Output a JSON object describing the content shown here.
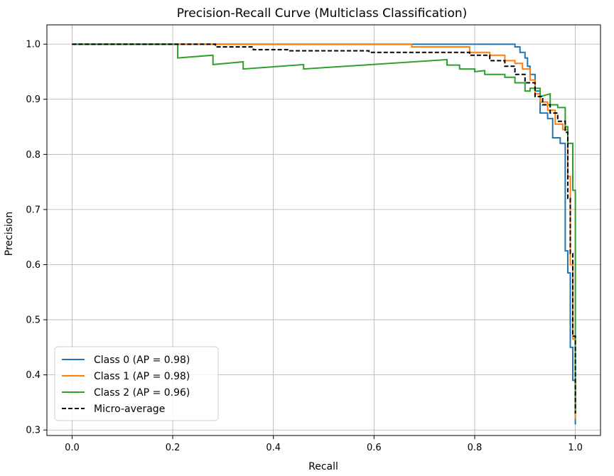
{
  "chart_data": {
    "type": "line",
    "title": "Precision-Recall Curve (Multiclass Classification)",
    "xlabel": "Recall",
    "ylabel": "Precision",
    "xlim": [
      -0.05,
      1.05
    ],
    "ylim": [
      0.29,
      1.035
    ],
    "xticks": [
      0.0,
      0.2,
      0.4,
      0.6,
      0.8,
      1.0
    ],
    "xtick_labels": [
      "0.0",
      "0.2",
      "0.4",
      "0.6",
      "0.8",
      "1.0"
    ],
    "yticks": [
      0.3,
      0.4,
      0.5,
      0.6,
      0.7,
      0.8,
      0.9,
      1.0
    ],
    "ytick_labels": [
      "0.3",
      "0.4",
      "0.5",
      "0.6",
      "0.7",
      "0.8",
      "0.9",
      "1.0"
    ],
    "grid": true,
    "legend_position": "lower-left",
    "series": [
      {
        "name": "Class 0 (AP = 0.98)",
        "color": "#1f77b4",
        "style": "solid",
        "points": [
          [
            0.0,
            1.0
          ],
          [
            0.88,
            1.0
          ],
          [
            0.88,
            0.995
          ],
          [
            0.89,
            0.995
          ],
          [
            0.89,
            0.985
          ],
          [
            0.9,
            0.985
          ],
          [
            0.9,
            0.975
          ],
          [
            0.905,
            0.975
          ],
          [
            0.905,
            0.96
          ],
          [
            0.91,
            0.96
          ],
          [
            0.91,
            0.945
          ],
          [
            0.92,
            0.945
          ],
          [
            0.92,
            0.915
          ],
          [
            0.93,
            0.915
          ],
          [
            0.93,
            0.875
          ],
          [
            0.945,
            0.875
          ],
          [
            0.945,
            0.865
          ],
          [
            0.955,
            0.865
          ],
          [
            0.955,
            0.83
          ],
          [
            0.97,
            0.83
          ],
          [
            0.97,
            0.82
          ],
          [
            0.98,
            0.82
          ],
          [
            0.98,
            0.625
          ],
          [
            0.985,
            0.625
          ],
          [
            0.985,
            0.585
          ],
          [
            0.99,
            0.585
          ],
          [
            0.99,
            0.45
          ],
          [
            0.995,
            0.45
          ],
          [
            0.995,
            0.39
          ],
          [
            1.0,
            0.39
          ],
          [
            1.0,
            0.31
          ]
        ]
      },
      {
        "name": "Class 1 (AP = 0.98)",
        "color": "#ff7f0e",
        "style": "solid",
        "points": [
          [
            0.0,
            1.0
          ],
          [
            0.675,
            1.0
          ],
          [
            0.675,
            0.995
          ],
          [
            0.79,
            0.995
          ],
          [
            0.79,
            0.985
          ],
          [
            0.83,
            0.985
          ],
          [
            0.83,
            0.98
          ],
          [
            0.86,
            0.98
          ],
          [
            0.86,
            0.97
          ],
          [
            0.88,
            0.97
          ],
          [
            0.88,
            0.965
          ],
          [
            0.895,
            0.965
          ],
          [
            0.895,
            0.955
          ],
          [
            0.91,
            0.955
          ],
          [
            0.91,
            0.935
          ],
          [
            0.92,
            0.935
          ],
          [
            0.92,
            0.91
          ],
          [
            0.93,
            0.91
          ],
          [
            0.93,
            0.895
          ],
          [
            0.945,
            0.895
          ],
          [
            0.945,
            0.88
          ],
          [
            0.96,
            0.88
          ],
          [
            0.96,
            0.855
          ],
          [
            0.975,
            0.855
          ],
          [
            0.975,
            0.845
          ],
          [
            0.985,
            0.845
          ],
          [
            0.985,
            0.76
          ],
          [
            0.99,
            0.76
          ],
          [
            0.99,
            0.6
          ],
          [
            0.995,
            0.6
          ],
          [
            0.995,
            0.465
          ],
          [
            1.0,
            0.465
          ],
          [
            1.0,
            0.32
          ]
        ]
      },
      {
        "name": "Class 2 (AP = 0.96)",
        "color": "#2ca02c",
        "style": "solid",
        "points": [
          [
            0.0,
            1.0
          ],
          [
            0.21,
            1.0
          ],
          [
            0.21,
            0.975
          ],
          [
            0.28,
            0.98
          ],
          [
            0.28,
            0.963
          ],
          [
            0.34,
            0.968
          ],
          [
            0.34,
            0.955
          ],
          [
            0.46,
            0.963
          ],
          [
            0.46,
            0.955
          ],
          [
            0.745,
            0.972
          ],
          [
            0.745,
            0.962
          ],
          [
            0.77,
            0.962
          ],
          [
            0.77,
            0.955
          ],
          [
            0.8,
            0.955
          ],
          [
            0.8,
            0.95
          ],
          [
            0.82,
            0.952
          ],
          [
            0.82,
            0.945
          ],
          [
            0.86,
            0.945
          ],
          [
            0.86,
            0.94
          ],
          [
            0.88,
            0.94
          ],
          [
            0.88,
            0.93
          ],
          [
            0.9,
            0.93
          ],
          [
            0.9,
            0.915
          ],
          [
            0.91,
            0.915
          ],
          [
            0.91,
            0.92
          ],
          [
            0.93,
            0.92
          ],
          [
            0.93,
            0.905
          ],
          [
            0.95,
            0.91
          ],
          [
            0.95,
            0.89
          ],
          [
            0.965,
            0.89
          ],
          [
            0.965,
            0.885
          ],
          [
            0.98,
            0.885
          ],
          [
            0.98,
            0.85
          ],
          [
            0.985,
            0.85
          ],
          [
            0.985,
            0.82
          ],
          [
            0.995,
            0.82
          ],
          [
            0.995,
            0.735
          ],
          [
            1.0,
            0.735
          ],
          [
            1.0,
            0.33
          ]
        ]
      },
      {
        "name": "Micro-average",
        "color": "#000000",
        "style": "dashed",
        "points": [
          [
            0.0,
            1.0
          ],
          [
            0.285,
            1.0
          ],
          [
            0.285,
            0.995
          ],
          [
            0.36,
            0.995
          ],
          [
            0.36,
            0.99
          ],
          [
            0.43,
            0.99
          ],
          [
            0.43,
            0.988
          ],
          [
            0.59,
            0.988
          ],
          [
            0.59,
            0.985
          ],
          [
            0.79,
            0.985
          ],
          [
            0.79,
            0.98
          ],
          [
            0.83,
            0.98
          ],
          [
            0.83,
            0.97
          ],
          [
            0.86,
            0.97
          ],
          [
            0.86,
            0.96
          ],
          [
            0.88,
            0.96
          ],
          [
            0.88,
            0.945
          ],
          [
            0.9,
            0.945
          ],
          [
            0.9,
            0.93
          ],
          [
            0.92,
            0.93
          ],
          [
            0.92,
            0.905
          ],
          [
            0.935,
            0.905
          ],
          [
            0.935,
            0.89
          ],
          [
            0.95,
            0.89
          ],
          [
            0.95,
            0.875
          ],
          [
            0.965,
            0.875
          ],
          [
            0.965,
            0.86
          ],
          [
            0.98,
            0.86
          ],
          [
            0.98,
            0.84
          ],
          [
            0.985,
            0.84
          ],
          [
            0.985,
            0.72
          ],
          [
            0.99,
            0.72
          ],
          [
            0.99,
            0.62
          ],
          [
            0.995,
            0.62
          ],
          [
            0.995,
            0.47
          ],
          [
            1.0,
            0.47
          ],
          [
            1.0,
            0.33
          ]
        ]
      }
    ]
  }
}
